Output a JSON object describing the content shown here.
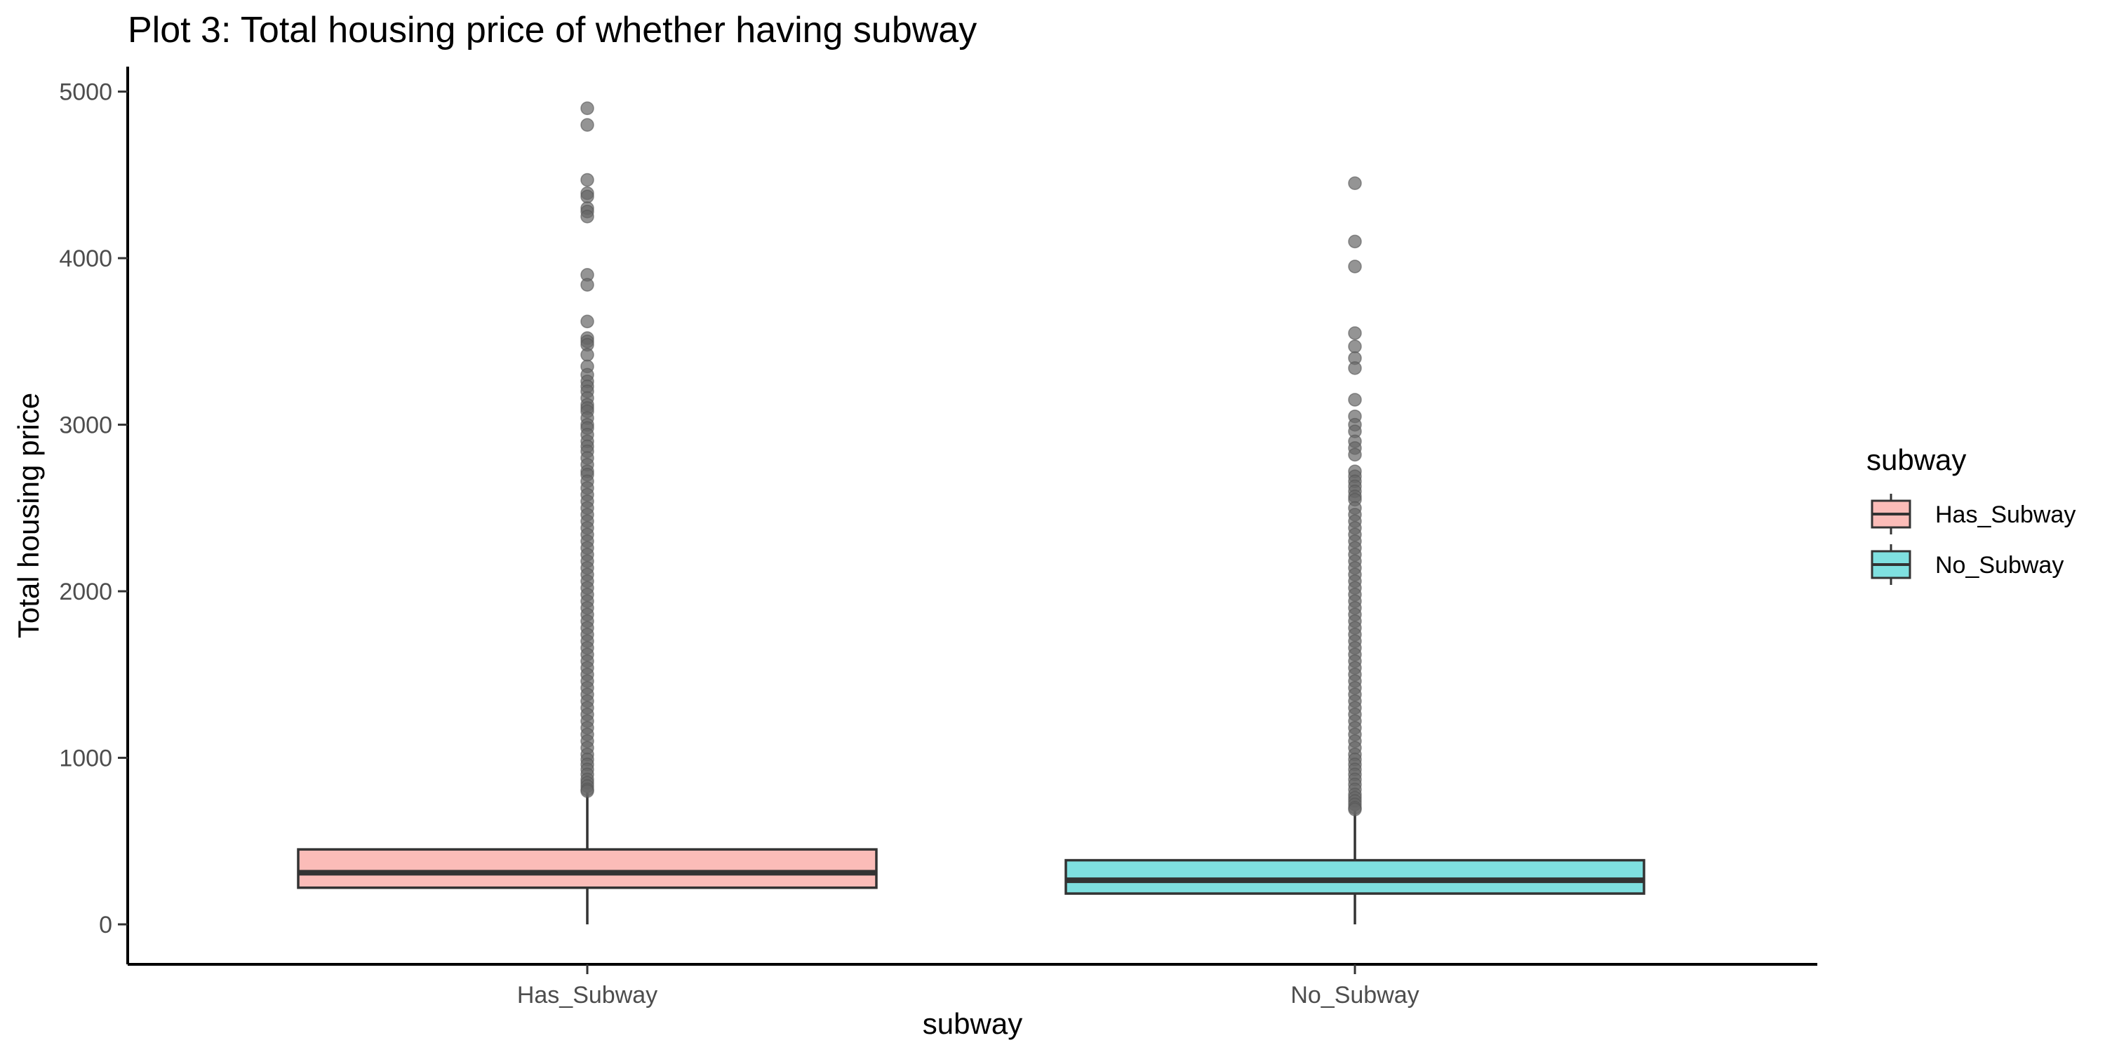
{
  "colors": {
    "has_subway_fill": "#fbbcb8",
    "no_subway_fill": "#7fe0e0",
    "outlier": "#666666",
    "box_stroke": "#333333",
    "axis": "#000000",
    "tick_label": "#4d4d4d"
  },
  "chart_data": {
    "type": "boxplot",
    "title": "Plot 3: Total housing price of whether having subway",
    "xlabel": "subway",
    "ylabel": "Total housing price",
    "ylim": [
      -240,
      5150
    ],
    "y_ticks": [
      0,
      1000,
      2000,
      3000,
      4000,
      5000
    ],
    "y_tick_labels": [
      "0",
      "1000",
      "2000",
      "3000",
      "4000",
      "5000"
    ],
    "categories": [
      "Has_Subway",
      "No_Subway"
    ],
    "grid": false,
    "legend": {
      "title": "subway",
      "position": "right",
      "entries": [
        "Has_Subway",
        "No_Subway"
      ]
    },
    "series": [
      {
        "category": "Has_Subway",
        "whisker_low": 0,
        "q1": 220,
        "median": 310,
        "q3": 450,
        "whisker_high": 790,
        "outliers": [
          4900,
          4800,
          4470,
          4390,
          4370,
          4300,
          4280,
          4250,
          3900,
          3840,
          3620,
          3520,
          3500,
          3480,
          3420,
          3350,
          3300,
          3260,
          3230,
          3200,
          3160,
          3120,
          3100,
          3080,
          3040,
          3000,
          2980,
          2940,
          2900,
          2870,
          2840,
          2800,
          2760,
          2720,
          2700,
          2660,
          2620,
          2580,
          2540,
          2500,
          2460,
          2420,
          2380,
          2340,
          2300,
          2260,
          2220,
          2180,
          2140,
          2100,
          2060,
          2020,
          1980,
          1940,
          1900,
          1860,
          1820,
          1780,
          1740,
          1700,
          1660,
          1620,
          1580,
          1540,
          1500,
          1460,
          1420,
          1380,
          1340,
          1300,
          1260,
          1220,
          1180,
          1140,
          1100,
          1060,
          1020,
          990,
          960,
          930,
          900,
          870,
          850,
          830,
          810,
          800
        ]
      },
      {
        "category": "No_Subway",
        "whisker_low": 0,
        "q1": 185,
        "median": 265,
        "q3": 385,
        "whisker_high": 680,
        "outliers": [
          4450,
          4100,
          3950,
          3550,
          3470,
          3400,
          3340,
          3150,
          3050,
          3000,
          2960,
          2900,
          2860,
          2820,
          2720,
          2690,
          2660,
          2630,
          2600,
          2570,
          2550,
          2500,
          2460,
          2420,
          2380,
          2340,
          2300,
          2260,
          2220,
          2180,
          2140,
          2100,
          2060,
          2020,
          1980,
          1940,
          1900,
          1860,
          1820,
          1780,
          1740,
          1700,
          1660,
          1620,
          1580,
          1540,
          1500,
          1460,
          1420,
          1380,
          1340,
          1300,
          1260,
          1220,
          1180,
          1140,
          1100,
          1060,
          1020,
          990,
          960,
          930,
          900,
          870,
          840,
          810,
          780,
          760,
          740,
          720,
          700,
          690
        ]
      }
    ]
  }
}
